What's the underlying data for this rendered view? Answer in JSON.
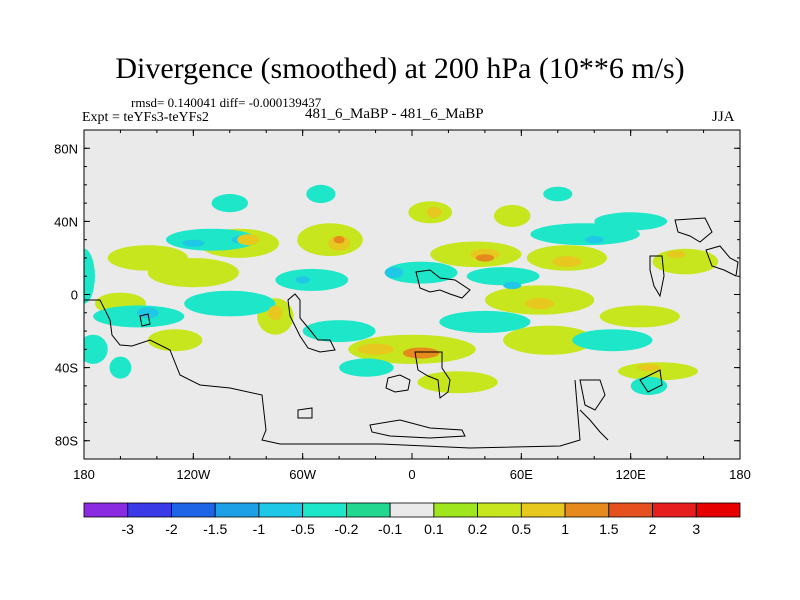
{
  "chart_data": {
    "type": "heatmap",
    "title": "Divergence (smoothed) at 200 hPa (10**6 m/s)",
    "stats": "rmsd= 0.140041 diff= -0.000139437",
    "experiment": "Expt = teYFs3-teYFs2",
    "cases": "481_6_MaBP - 481_6_MaBP",
    "season": "JJA",
    "xlim": [
      -180,
      180
    ],
    "ylim": [
      -90,
      90
    ],
    "x_ticks": [
      {
        "value": -180,
        "label": "180"
      },
      {
        "value": -120,
        "label": "120W"
      },
      {
        "value": -60,
        "label": "60W"
      },
      {
        "value": 0,
        "label": "0"
      },
      {
        "value": 60,
        "label": "60E"
      },
      {
        "value": 120,
        "label": "120E"
      },
      {
        "value": 180,
        "label": "180"
      }
    ],
    "y_ticks": [
      {
        "value": 80,
        "label": "80N"
      },
      {
        "value": 40,
        "label": "40N"
      },
      {
        "value": 0,
        "label": "0"
      },
      {
        "value": -40,
        "label": "40S"
      },
      {
        "value": -80,
        "label": "80S"
      }
    ],
    "colorbar": {
      "levels": [
        "-3",
        "-2",
        "-1.5",
        "-1",
        "-0.5",
        "-0.2",
        "-0.1",
        "0.1",
        "0.2",
        "0.5",
        "1",
        "1.5",
        "2",
        "3"
      ],
      "colors": [
        "#8a2be2",
        "#3a3ae6",
        "#1e64e6",
        "#1ea0e6",
        "#1ec8e6",
        "#1ee6c8",
        "#22d890",
        "#eaeaea",
        "#a0e61e",
        "#c8e61e",
        "#e6c81e",
        "#e68a1e",
        "#e6501e",
        "#e61e1e",
        "#e60000"
      ]
    },
    "features": [
      {
        "lon": -145,
        "lat": 20,
        "rx": 22,
        "ry": 7,
        "value": 0.3
      },
      {
        "lon": -120,
        "lat": 12,
        "rx": 25,
        "ry": 8,
        "value": 0.3
      },
      {
        "lon": -160,
        "lat": -5,
        "rx": 14,
        "ry": 6,
        "value": 0.3
      },
      {
        "lon": -95,
        "lat": 28,
        "rx": 22,
        "ry": 8,
        "value": 0.3
      },
      {
        "lon": -45,
        "lat": 30,
        "rx": 18,
        "ry": 9,
        "value": 0.3
      },
      {
        "lon": 10,
        "lat": 45,
        "rx": 12,
        "ry": 6,
        "value": 0.3
      },
      {
        "lon": 55,
        "lat": 43,
        "rx": 10,
        "ry": 6,
        "value": 0.3
      },
      {
        "lon": 35,
        "lat": 22,
        "rx": 25,
        "ry": 7,
        "value": 0.3
      },
      {
        "lon": 85,
        "lat": 20,
        "rx": 22,
        "ry": 7,
        "value": 0.3
      },
      {
        "lon": 150,
        "lat": 18,
        "rx": 18,
        "ry": 7,
        "value": 0.3
      },
      {
        "lon": 70,
        "lat": -3,
        "rx": 30,
        "ry": 8,
        "value": 0.3
      },
      {
        "lon": 125,
        "lat": -12,
        "rx": 22,
        "ry": 6,
        "value": 0.3
      },
      {
        "lon": -75,
        "lat": -12,
        "rx": 10,
        "ry": 10,
        "value": 0.3
      },
      {
        "lon": 0,
        "lat": -30,
        "rx": 35,
        "ry": 8,
        "value": 0.3
      },
      {
        "lon": 75,
        "lat": -25,
        "rx": 25,
        "ry": 8,
        "value": 0.3
      },
      {
        "lon": -130,
        "lat": -25,
        "rx": 15,
        "ry": 6,
        "value": 0.3
      },
      {
        "lon": 135,
        "lat": -42,
        "rx": 22,
        "ry": 5,
        "value": 0.3
      },
      {
        "lon": 25,
        "lat": -48,
        "rx": 22,
        "ry": 6,
        "value": 0.3
      },
      {
        "lon": 5,
        "lat": 12,
        "rx": 20,
        "ry": 6,
        "value": -0.3
      },
      {
        "lon": -110,
        "lat": 30,
        "rx": 25,
        "ry": 6,
        "value": -0.3
      },
      {
        "lon": 95,
        "lat": 33,
        "rx": 30,
        "ry": 6,
        "value": -0.3
      },
      {
        "lon": -55,
        "lat": 8,
        "rx": 20,
        "ry": 6,
        "value": -0.3
      },
      {
        "lon": 50,
        "lat": 10,
        "rx": 20,
        "ry": 5,
        "value": -0.3
      },
      {
        "lon": -150,
        "lat": -12,
        "rx": 25,
        "ry": 6,
        "value": -0.3
      },
      {
        "lon": -100,
        "lat": -5,
        "rx": 25,
        "ry": 7,
        "value": -0.3
      },
      {
        "lon": 40,
        "lat": -15,
        "rx": 25,
        "ry": 6,
        "value": -0.3
      },
      {
        "lon": 110,
        "lat": -25,
        "rx": 22,
        "ry": 6,
        "value": -0.3
      },
      {
        "lon": -40,
        "lat": -20,
        "rx": 20,
        "ry": 6,
        "value": -0.3
      },
      {
        "lon": -25,
        "lat": -40,
        "rx": 15,
        "ry": 5,
        "value": -0.3
      },
      {
        "lon": 120,
        "lat": 40,
        "rx": 20,
        "ry": 5,
        "value": -0.3
      },
      {
        "lon": -180,
        "lat": 10,
        "rx": 6,
        "ry": 15,
        "value": -0.3
      },
      {
        "lon": -175,
        "lat": -30,
        "rx": 8,
        "ry": 8,
        "value": -0.3
      },
      {
        "lon": -160,
        "lat": -40,
        "rx": 6,
        "ry": 6,
        "value": -0.3
      },
      {
        "lon": -100,
        "lat": 50,
        "rx": 10,
        "ry": 5,
        "value": -0.3
      },
      {
        "lon": 130,
        "lat": -50,
        "rx": 10,
        "ry": 5,
        "value": -0.3
      },
      {
        "lon": -50,
        "lat": 55,
        "rx": 8,
        "ry": 5,
        "value": -0.3
      },
      {
        "lon": 80,
        "lat": 55,
        "rx": 8,
        "ry": 4,
        "value": -0.3
      },
      {
        "lon": -10,
        "lat": 12,
        "rx": 5,
        "ry": 3,
        "value": -0.6
      },
      {
        "lon": 55,
        "lat": 5,
        "rx": 5,
        "ry": 2,
        "value": -0.6
      },
      {
        "lon": -145,
        "lat": -10,
        "rx": 6,
        "ry": 3,
        "value": -0.6
      },
      {
        "lon": -120,
        "lat": 28,
        "rx": 6,
        "ry": 2,
        "value": -0.6
      },
      {
        "lon": -95,
        "lat": 30,
        "rx": 4,
        "ry": 2,
        "value": -0.6
      },
      {
        "lon": -60,
        "lat": 8,
        "rx": 4,
        "ry": 2,
        "value": -0.6
      },
      {
        "lon": 100,
        "lat": 30,
        "rx": 5,
        "ry": 2,
        "value": -0.6
      },
      {
        "lon": 145,
        "lat": 22,
        "rx": 5,
        "ry": 2,
        "value": 0.6
      },
      {
        "lon": -40,
        "lat": 28,
        "rx": 6,
        "ry": 4,
        "value": 0.6
      },
      {
        "lon": 40,
        "lat": 22,
        "rx": 8,
        "ry": 3,
        "value": 0.6
      },
      {
        "lon": 85,
        "lat": 18,
        "rx": 8,
        "ry": 3,
        "value": 0.6
      },
      {
        "lon": -20,
        "lat": -30,
        "rx": 10,
        "ry": 3,
        "value": 0.6
      },
      {
        "lon": 70,
        "lat": -5,
        "rx": 8,
        "ry": 3,
        "value": 0.6
      },
      {
        "lon": -75,
        "lat": -10,
        "rx": 4,
        "ry": 4,
        "value": 0.6
      },
      {
        "lon": 12,
        "lat": 45,
        "rx": 4,
        "ry": 3,
        "value": 0.6
      },
      {
        "lon": -90,
        "lat": 30,
        "rx": 6,
        "ry": 3,
        "value": 0.6
      },
      {
        "lon": 130,
        "lat": -40,
        "rx": 6,
        "ry": 2,
        "value": 0.6
      },
      {
        "lon": 5,
        "lat": -32,
        "rx": 10,
        "ry": 3,
        "value": 1.2
      },
      {
        "lon": 40,
        "lat": 20,
        "rx": 5,
        "ry": 2,
        "value": 1.2
      },
      {
        "lon": -40,
        "lat": 30,
        "rx": 3,
        "ry": 2,
        "value": 1.2
      }
    ]
  }
}
